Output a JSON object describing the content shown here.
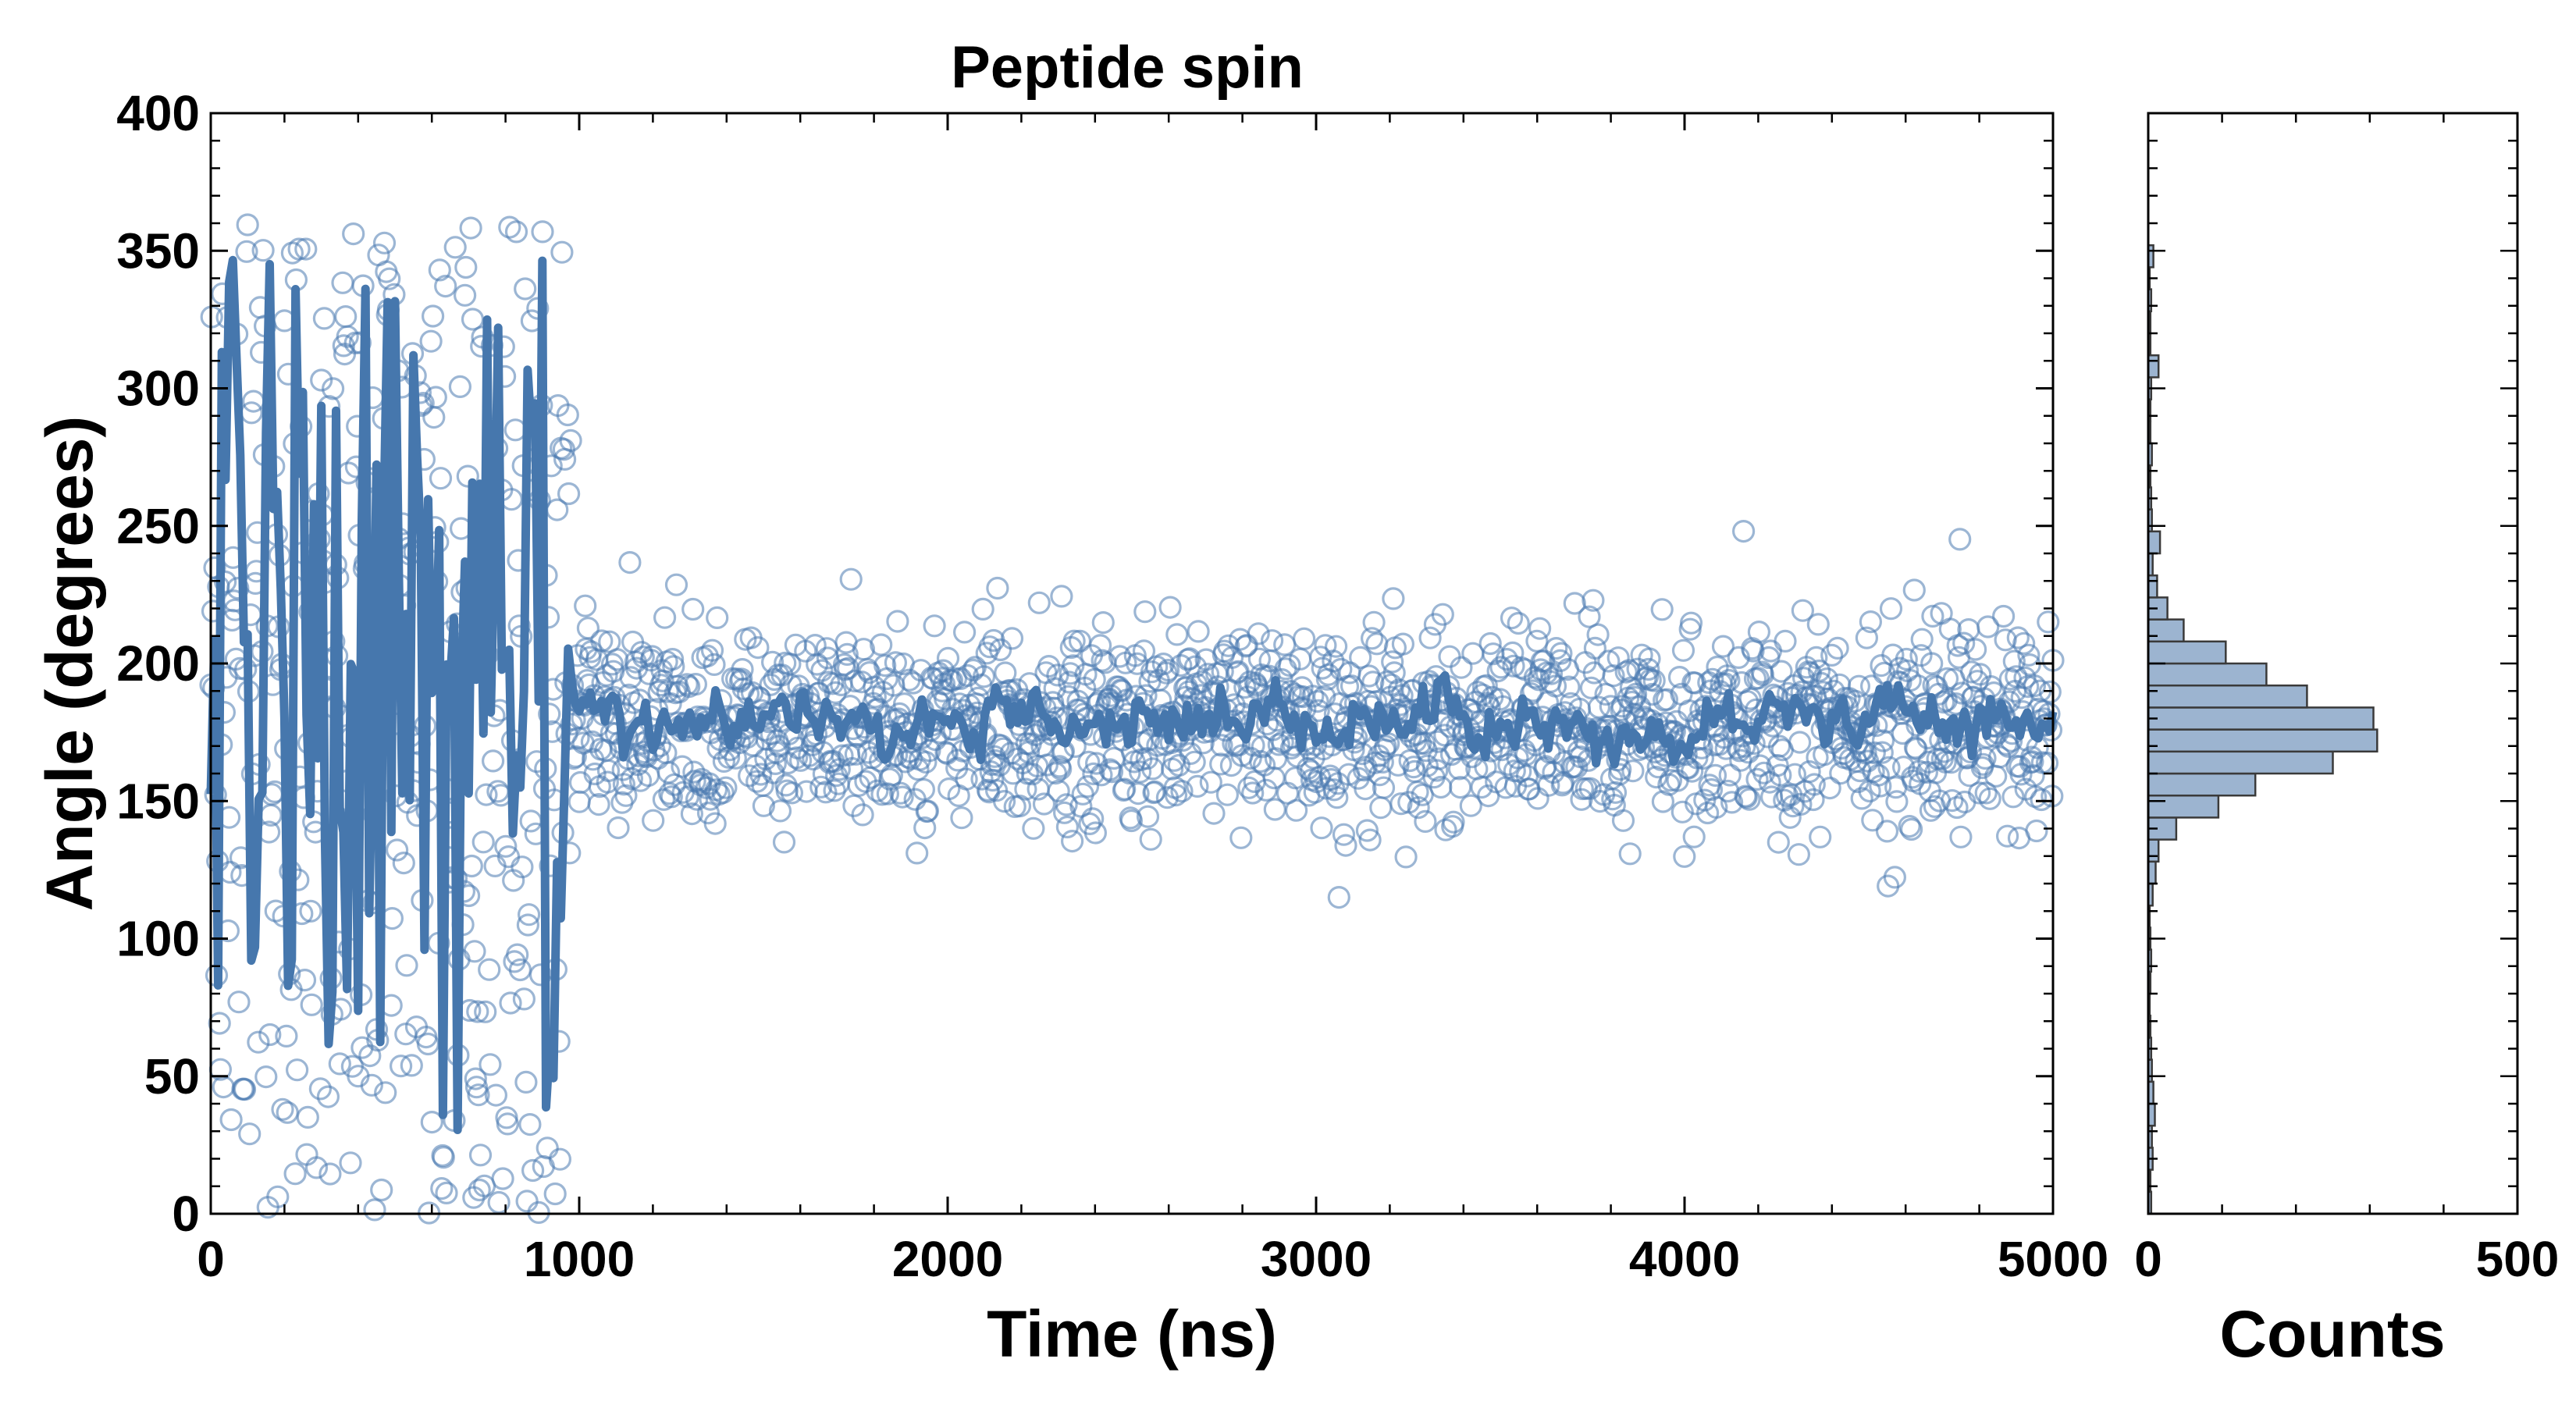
{
  "chart_data": [
    {
      "type": "scatter",
      "title": "Peptide spin",
      "xlabel": "Time (ns)",
      "ylabel": "Angle (degrees)",
      "xlim": [
        0,
        5000
      ],
      "ylim": [
        0,
        400
      ],
      "x_ticks": [
        0,
        1000,
        2000,
        3000,
        4000,
        5000
      ],
      "y_ticks": [
        0,
        50,
        100,
        150,
        200,
        250,
        300,
        350,
        400
      ],
      "grid": false,
      "colors": {
        "points": "#4a7ab0",
        "line": "#4677ad"
      },
      "series": [
        {
          "kind": "scatter",
          "markers": "open-circle",
          "x_range": [
            0,
            5000
          ],
          "n_points": 1900,
          "regime_1": {
            "x_range": [
              0,
              980
            ],
            "y_range": [
              0,
              360
            ],
            "behavior": "uniform spread"
          },
          "regime_2": {
            "x_range": [
              980,
              5000
            ],
            "center": 178,
            "spread_sd": 18,
            "y_range": [
              115,
              250
            ]
          }
        },
        {
          "kind": "line",
          "smoothed": true,
          "regime_1": {
            "x_range": [
              0,
              980
            ],
            "y_range": [
              30,
              355
            ],
            "behavior": "large oscillations"
          },
          "regime_2": {
            "x_range": [
              980,
              5000
            ],
            "center": 178,
            "y_range": [
              160,
              205
            ]
          }
        }
      ]
    },
    {
      "type": "bar",
      "orientation": "horizontal",
      "xlabel": "Counts",
      "xlim": [
        0,
        500
      ],
      "ylim": [
        0,
        400
      ],
      "x_ticks": [
        0,
        500
      ],
      "colors": {
        "fill": "#9cb4d0",
        "edge": "#3a3a3a"
      },
      "bin_width": 8,
      "bins": [
        {
          "y0": 0,
          "count": 4
        },
        {
          "y0": 8,
          "count": 3
        },
        {
          "y0": 16,
          "count": 6
        },
        {
          "y0": 24,
          "count": 5
        },
        {
          "y0": 32,
          "count": 9
        },
        {
          "y0": 40,
          "count": 7
        },
        {
          "y0": 48,
          "count": 5
        },
        {
          "y0": 56,
          "count": 4
        },
        {
          "y0": 64,
          "count": 3
        },
        {
          "y0": 72,
          "count": 2
        },
        {
          "y0": 80,
          "count": 3
        },
        {
          "y0": 88,
          "count": 4
        },
        {
          "y0": 96,
          "count": 3
        },
        {
          "y0": 104,
          "count": 2
        },
        {
          "y0": 112,
          "count": 6
        },
        {
          "y0": 120,
          "count": 10
        },
        {
          "y0": 128,
          "count": 14
        },
        {
          "y0": 136,
          "count": 38
        },
        {
          "y0": 144,
          "count": 95
        },
        {
          "y0": 152,
          "count": 145
        },
        {
          "y0": 160,
          "count": 250
        },
        {
          "y0": 168,
          "count": 310
        },
        {
          "y0": 176,
          "count": 305
        },
        {
          "y0": 184,
          "count": 215
        },
        {
          "y0": 192,
          "count": 160
        },
        {
          "y0": 200,
          "count": 105
        },
        {
          "y0": 208,
          "count": 48
        },
        {
          "y0": 216,
          "count": 26
        },
        {
          "y0": 224,
          "count": 12
        },
        {
          "y0": 232,
          "count": 6
        },
        {
          "y0": 240,
          "count": 16
        },
        {
          "y0": 248,
          "count": 5
        },
        {
          "y0": 256,
          "count": 4
        },
        {
          "y0": 264,
          "count": 3
        },
        {
          "y0": 272,
          "count": 5
        },
        {
          "y0": 280,
          "count": 3
        },
        {
          "y0": 288,
          "count": 3
        },
        {
          "y0": 296,
          "count": 4
        },
        {
          "y0": 304,
          "count": 14
        },
        {
          "y0": 312,
          "count": 3
        },
        {
          "y0": 320,
          "count": 3
        },
        {
          "y0": 328,
          "count": 4
        },
        {
          "y0": 336,
          "count": 2
        },
        {
          "y0": 344,
          "count": 7
        }
      ]
    }
  ]
}
